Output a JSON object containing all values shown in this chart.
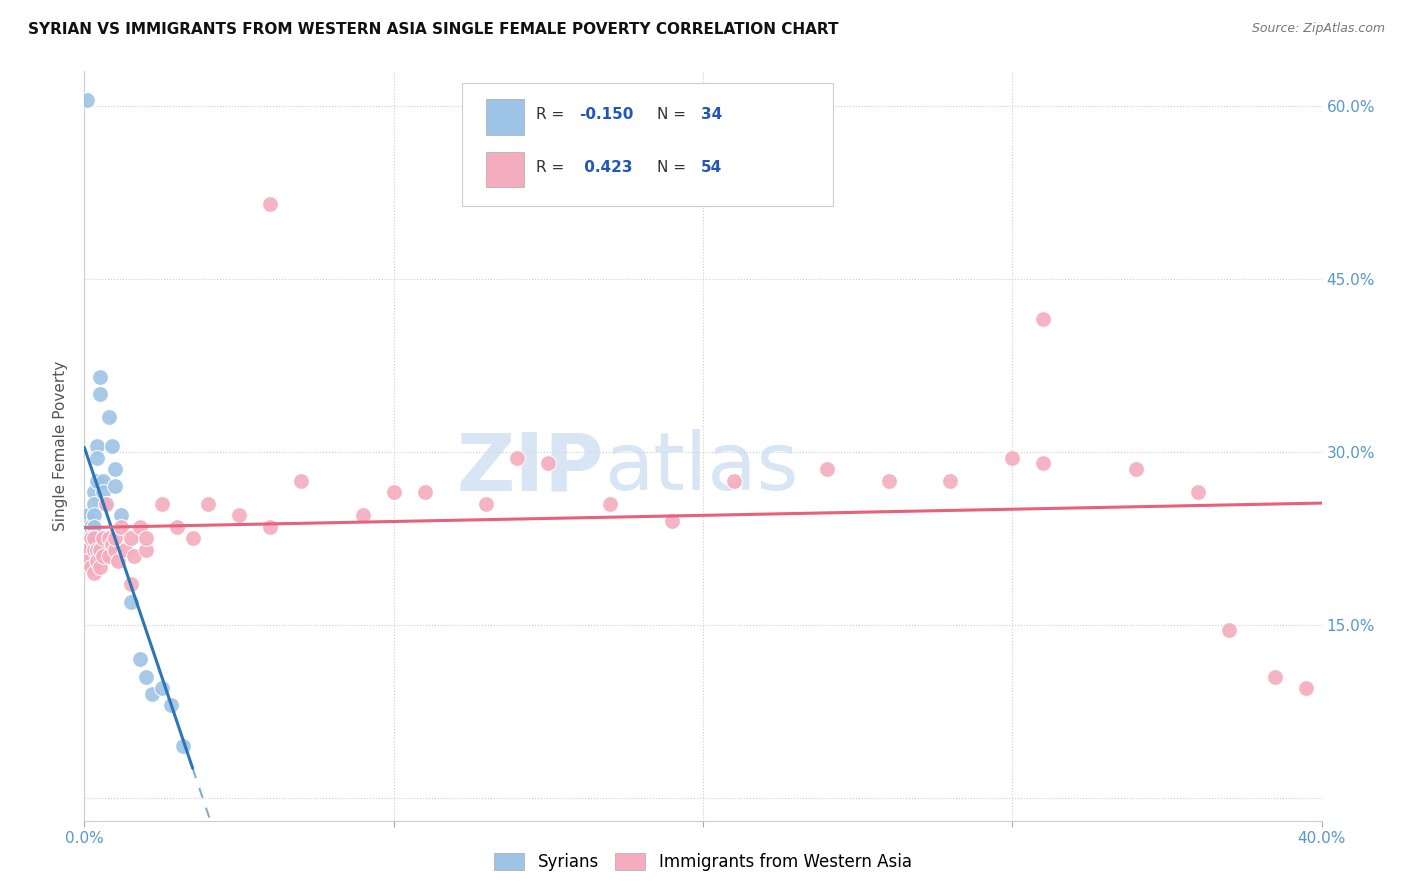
{
  "title": "SYRIAN VS IMMIGRANTS FROM WESTERN ASIA SINGLE FEMALE POVERTY CORRELATION CHART",
  "source": "Source: ZipAtlas.com",
  "ylabel": "Single Female Poverty",
  "xlim": [
    0.0,
    0.4
  ],
  "ylim": [
    -0.02,
    0.63
  ],
  "syrians_R": -0.15,
  "syrians_N": 34,
  "western_asia_R": 0.423,
  "western_asia_N": 54,
  "legend_label_1": "Syrians",
  "legend_label_2": "Immigrants from Western Asia",
  "blue_color": "#9DC3E6",
  "pink_color": "#F4ACBE",
  "blue_line_color": "#2E75B6",
  "pink_line_color": "#E8607A",
  "watermark_zip": "ZIP",
  "watermark_atlas": "atlas",
  "syrians_x": [
    0.001,
    0.001,
    0.001,
    0.002,
    0.002,
    0.002,
    0.002,
    0.002,
    0.003,
    0.003,
    0.003,
    0.003,
    0.003,
    0.003,
    0.004,
    0.004,
    0.004,
    0.005,
    0.005,
    0.006,
    0.006,
    0.007,
    0.008,
    0.009,
    0.01,
    0.01,
    0.012,
    0.015,
    0.018,
    0.02,
    0.022,
    0.025,
    0.028,
    0.032
  ],
  "syrians_y": [
    0.245,
    0.235,
    0.225,
    0.215,
    0.21,
    0.225,
    0.23,
    0.235,
    0.265,
    0.255,
    0.245,
    0.235,
    0.225,
    0.215,
    0.305,
    0.295,
    0.275,
    0.365,
    0.35,
    0.275,
    0.265,
    0.255,
    0.33,
    0.305,
    0.285,
    0.27,
    0.245,
    0.17,
    0.12,
    0.105,
    0.09,
    0.095,
    0.08,
    0.045
  ],
  "syrians_x_outlier": [
    0.001
  ],
  "syrians_y_outlier": [
    0.605
  ],
  "western_x": [
    0.001,
    0.001,
    0.002,
    0.002,
    0.003,
    0.003,
    0.003,
    0.004,
    0.004,
    0.005,
    0.005,
    0.006,
    0.006,
    0.007,
    0.008,
    0.008,
    0.009,
    0.01,
    0.01,
    0.011,
    0.012,
    0.013,
    0.015,
    0.015,
    0.016,
    0.018,
    0.02,
    0.02,
    0.025,
    0.03,
    0.035,
    0.04,
    0.05,
    0.06,
    0.07,
    0.09,
    0.1,
    0.11,
    0.13,
    0.14,
    0.15,
    0.17,
    0.19,
    0.21,
    0.24,
    0.26,
    0.28,
    0.3,
    0.31,
    0.34,
    0.36,
    0.37,
    0.385,
    0.395
  ],
  "western_y": [
    0.215,
    0.205,
    0.225,
    0.2,
    0.195,
    0.215,
    0.225,
    0.215,
    0.205,
    0.2,
    0.215,
    0.21,
    0.225,
    0.255,
    0.21,
    0.225,
    0.22,
    0.215,
    0.225,
    0.205,
    0.235,
    0.215,
    0.185,
    0.225,
    0.21,
    0.235,
    0.215,
    0.225,
    0.255,
    0.235,
    0.225,
    0.255,
    0.245,
    0.235,
    0.275,
    0.245,
    0.265,
    0.265,
    0.255,
    0.295,
    0.29,
    0.255,
    0.24,
    0.275,
    0.285,
    0.275,
    0.275,
    0.295,
    0.29,
    0.285,
    0.265,
    0.145,
    0.105,
    0.095
  ],
  "western_x_outlier": [
    0.06
  ],
  "western_y_outlier": [
    0.515
  ],
  "western_x_outlier2": [
    0.31
  ],
  "western_y_outlier2": [
    0.415
  ]
}
